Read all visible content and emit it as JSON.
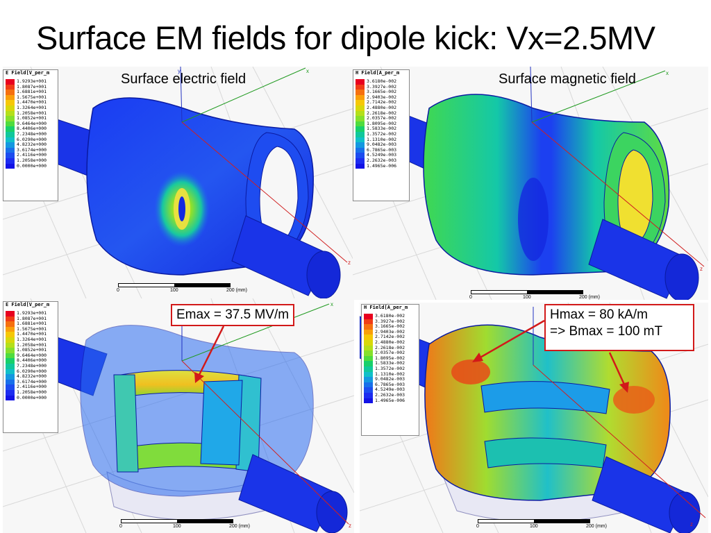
{
  "slide": {
    "title": "Surface EM fields for dipole kick: Vx=2.5MV"
  },
  "legends": {
    "electric": {
      "title": "E Field[V_per_m",
      "values": [
        "1.9293e+001",
        "1.8087e+001",
        "1.6881e+001",
        "1.5675e+001",
        "1.4470e+001",
        "1.3264e+001",
        "1.2058e+001",
        "1.0852e+001",
        "9.6464e+000",
        "8.4406e+000",
        "7.2348e+000",
        "6.0290e+000",
        "4.8232e+000",
        "3.6174e+000",
        "2.4116e+000",
        "1.2058e+000",
        "0.0000e+000"
      ]
    },
    "magnetic": {
      "title": "H Field[A_per_m",
      "values": [
        "3.6180e-002",
        "3.3927e-002",
        "3.1665e-002",
        "2.9403e-002",
        "2.7142e-002",
        "2.4880e-002",
        "2.2618e-002",
        "2.0357e-002",
        "1.8095e-002",
        "1.5833e-002",
        "1.3572e-002",
        "1.1310e-002",
        "9.0482e-003",
        "6.7865e-003",
        "4.5249e-003",
        "2.2632e-003",
        "1.4965e-006"
      ]
    },
    "colors": [
      "#e8001e",
      "#f03c16",
      "#f6700f",
      "#fa9f0a",
      "#f6c806",
      "#d8d80a",
      "#b4e01a",
      "#86e02c",
      "#4fdc3e",
      "#18d06a",
      "#10c89c",
      "#10c0c8",
      "#1498e0",
      "#1870ea",
      "#1c4cf0",
      "#1c2cf0",
      "#1212e6"
    ]
  },
  "captions": {
    "electric": "Surface electric field",
    "magnetic": "Surface magnetic field"
  },
  "scale": {
    "tick_0": "0",
    "tick_100": "100",
    "tick_200": "200 (mm)"
  },
  "axes": {
    "x": "x",
    "y": "y",
    "z": "z"
  },
  "callouts": {
    "emax": "Emax = 37.5 MV/m",
    "hmax_line1": "Hmax = 80 kA/m",
    "hmax_line2": "=> Bmax = 100 mT"
  }
}
